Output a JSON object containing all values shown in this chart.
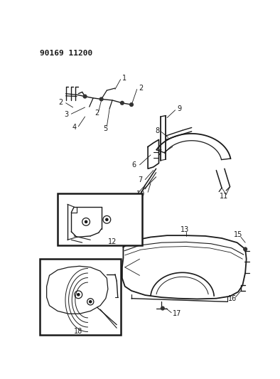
{
  "title": "90169 11200",
  "bg_color": "#ffffff",
  "line_color": "#1a1a1a",
  "fig_width": 3.94,
  "fig_height": 5.33,
  "dpi": 100
}
